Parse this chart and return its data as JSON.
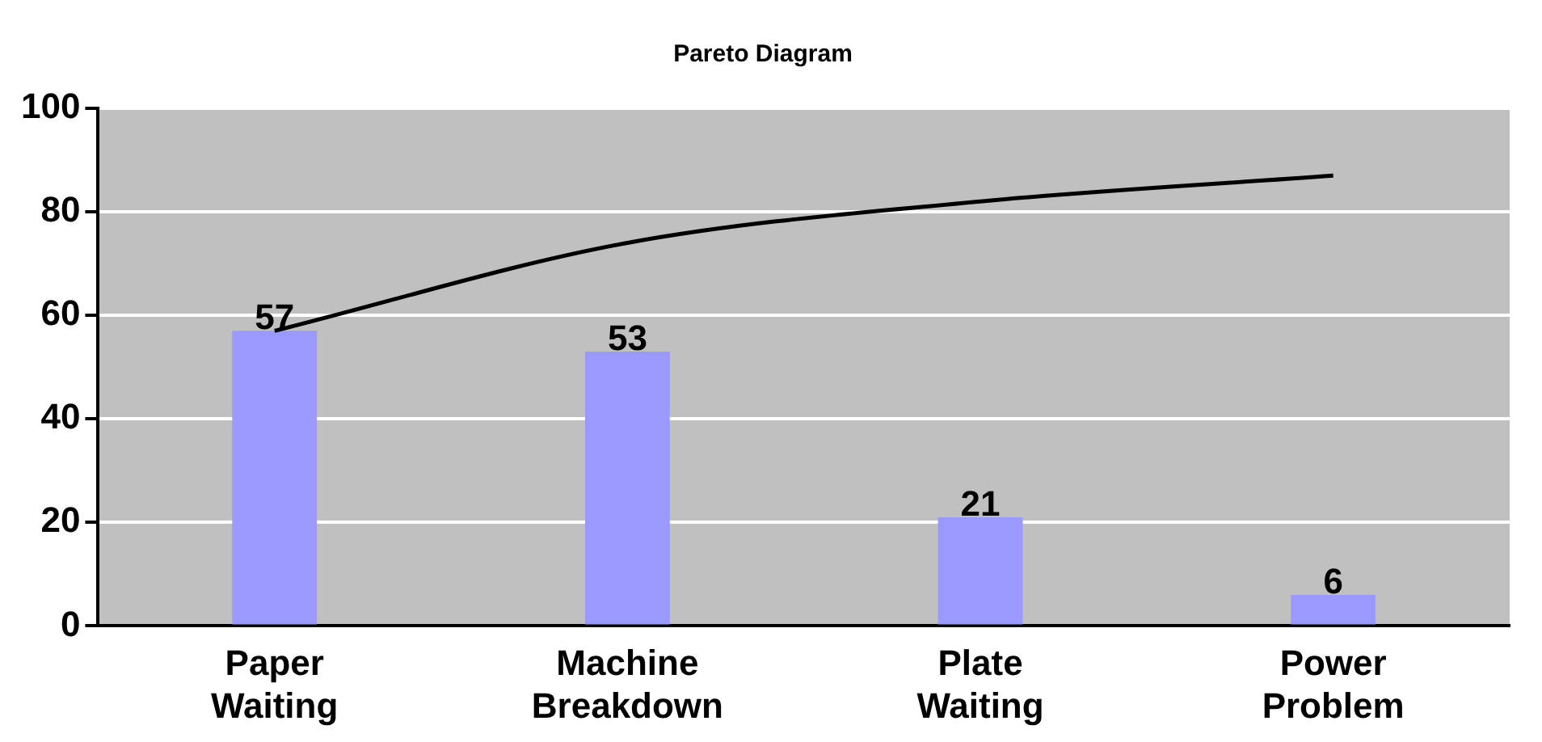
{
  "chart_data": {
    "type": "bar",
    "title": "Pareto Diagram",
    "categories": [
      "Paper Waiting",
      "Machine Breakdown",
      "Plate Waiting",
      "Power Problem"
    ],
    "series": [
      {
        "color": "#9999ff",
        "values": [
          57,
          53,
          21,
          6
        ],
        "value_labels": [
          "57",
          "53",
          "21",
          "6"
        ]
      },
      {
        "type": "line",
        "color": "#000000",
        "values": [
          57,
          74,
          82,
          87
        ]
      }
    ],
    "ylim": [
      0,
      100
    ],
    "yticks": [
      0,
      20,
      40,
      60,
      80,
      100
    ],
    "grid": "y",
    "legend": false,
    "marker": "none"
  }
}
